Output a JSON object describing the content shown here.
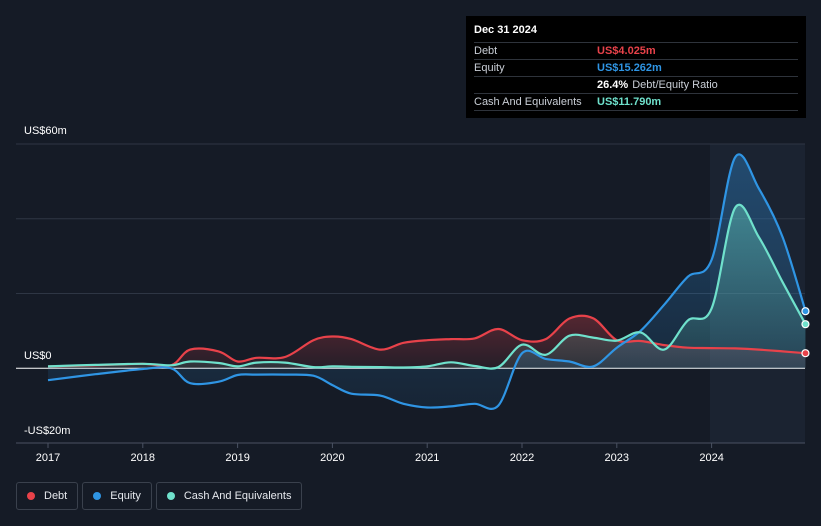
{
  "tooltip": {
    "date": "Dec 31 2024",
    "rows": [
      {
        "label": "Debt",
        "value": "US$4.025m",
        "suffix": ""
      },
      {
        "label": "Equity",
        "value": "US$15.262m",
        "suffix": ""
      },
      {
        "label": "",
        "value": "26.4%",
        "suffix": "Debt/Equity Ratio"
      },
      {
        "label": "Cash And Equivalents",
        "value": "US$11.790m",
        "suffix": ""
      }
    ]
  },
  "y_tick_labels": [
    "US$60m",
    "US$0",
    "-US$20m"
  ],
  "legend": [
    {
      "label": "Debt",
      "color": "#e8424a"
    },
    {
      "label": "Equity",
      "color": "#2f95e4"
    },
    {
      "label": "Cash And Equivalents",
      "color": "#6fe1cc"
    }
  ],
  "chart_data": {
    "type": "line",
    "title": "",
    "xlabel": "",
    "ylabel": "",
    "x_ticks": [
      "2017",
      "2018",
      "2019",
      "2020",
      "2021",
      "2022",
      "2023",
      "2024"
    ],
    "ylim": [
      -20,
      60
    ],
    "xlim": [
      2016.7,
      2024.99
    ],
    "grid": true,
    "series": [
      {
        "name": "Debt",
        "color": "#e8424a",
        "x": [
          2017.0,
          2017.5,
          2018.0,
          2018.3,
          2018.5,
          2018.8,
          2019.0,
          2019.2,
          2019.5,
          2019.8,
          2020.0,
          2020.2,
          2020.5,
          2020.75,
          2021.0,
          2021.25,
          2021.5,
          2021.75,
          2022.0,
          2022.25,
          2022.5,
          2022.75,
          2023.0,
          2023.25,
          2023.5,
          2023.75,
          2024.0,
          2024.25,
          2024.5,
          2024.75,
          2024.99
        ],
        "values": [
          0.5,
          0.8,
          1.2,
          0.8,
          5.0,
          4.5,
          1.8,
          2.8,
          3.0,
          7.5,
          8.5,
          7.8,
          5.0,
          6.8,
          7.5,
          7.8,
          8.0,
          10.5,
          7.5,
          7.8,
          13.3,
          13.4,
          7.5,
          7.3,
          6.2,
          5.5,
          5.4,
          5.3,
          5.0,
          4.5,
          4.025
        ]
      },
      {
        "name": "Equity",
        "color": "#2f95e4",
        "x": [
          2017.0,
          2017.5,
          2018.0,
          2018.3,
          2018.5,
          2018.8,
          2019.0,
          2019.2,
          2019.5,
          2019.8,
          2020.0,
          2020.2,
          2020.5,
          2020.75,
          2021.0,
          2021.25,
          2021.5,
          2021.75,
          2022.0,
          2022.25,
          2022.5,
          2022.75,
          2023.0,
          2023.25,
          2023.5,
          2023.75,
          2024.0,
          2024.25,
          2024.5,
          2024.75,
          2024.99
        ],
        "values": [
          -3.2,
          -1.6,
          -0.2,
          0.0,
          -4.0,
          -3.6,
          -1.8,
          -1.7,
          -1.7,
          -2.0,
          -4.5,
          -6.8,
          -7.3,
          -9.5,
          -10.5,
          -10.2,
          -9.5,
          -10.0,
          4.0,
          2.5,
          1.8,
          0.5,
          5.5,
          10.0,
          17.0,
          24.5,
          29.0,
          56.5,
          48.0,
          35.0,
          15.262
        ]
      },
      {
        "name": "Cash And Equivalents",
        "color": "#6fe1cc",
        "x": [
          2017.0,
          2017.5,
          2018.0,
          2018.3,
          2018.5,
          2018.8,
          2019.0,
          2019.2,
          2019.5,
          2019.8,
          2020.0,
          2020.2,
          2020.5,
          2020.75,
          2021.0,
          2021.25,
          2021.5,
          2021.75,
          2022.0,
          2022.25,
          2022.5,
          2022.75,
          2023.0,
          2023.25,
          2023.5,
          2023.75,
          2024.0,
          2024.25,
          2024.5,
          2024.75,
          2024.99
        ],
        "values": [
          0.5,
          0.9,
          1.2,
          0.8,
          1.8,
          1.4,
          0.5,
          1.5,
          1.5,
          0.3,
          0.5,
          0.4,
          0.3,
          0.2,
          0.5,
          1.6,
          0.6,
          0.3,
          6.3,
          3.6,
          8.7,
          8.2,
          7.4,
          9.6,
          5.0,
          12.8,
          16.0,
          43.0,
          35.0,
          23.0,
          11.79
        ]
      }
    ]
  }
}
